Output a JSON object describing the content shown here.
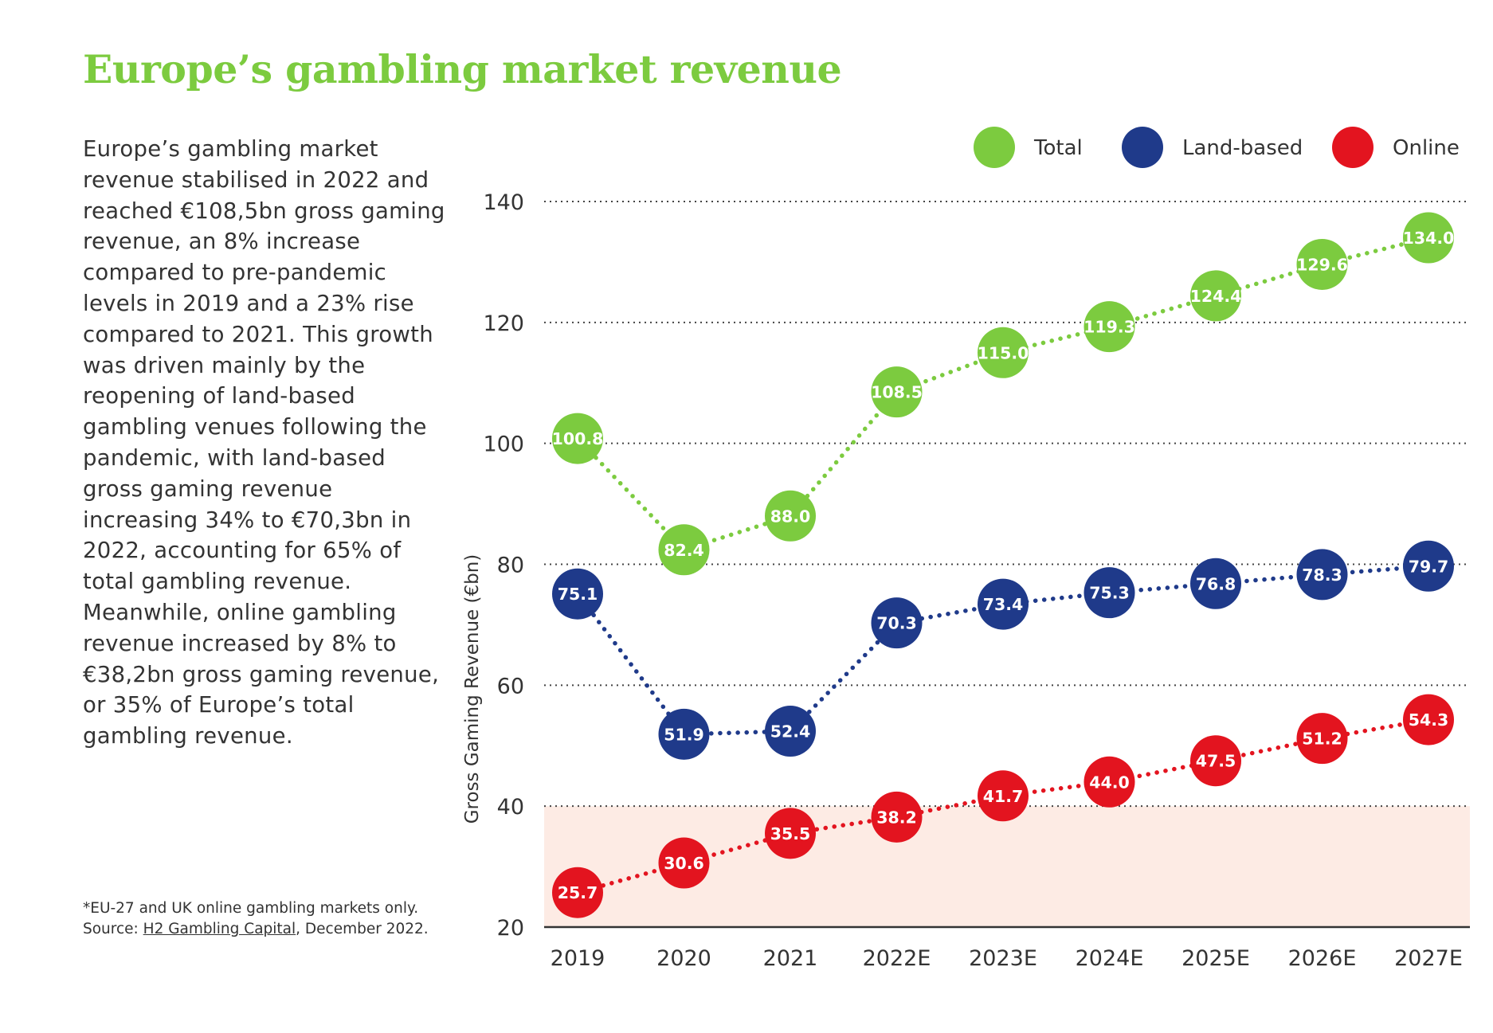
{
  "title": "Europe’s gambling market revenue",
  "description": "Europe’s gambling market revenue stabilised in 2022 and reached €108,5bn gross gaming revenue, an 8% increase compared to pre-pandemic levels in 2019 and a 23% rise compared to 2021. This growth was driven mainly by the reopening of land-based gambling venues following the pandemic, with land-based gross gaming revenue increasing 34% to €70,3bn in 2022, accounting for 65% of total gambling revenue. Meanwhile, online gambling revenue increased by 8% to €38,2bn gross gaming revenue, or 35% of Europe’s total gambling revenue.",
  "footnote": {
    "note": "*EU-27 and UK online gambling markets only.",
    "source_prefix": "Source: ",
    "source_name": "H2 Gambling Capital",
    "source_suffix": ", December 2022."
  },
  "chart_data": {
    "type": "line",
    "title": "Europe’s gambling market revenue",
    "xlabel": "",
    "ylabel": "Gross Gaming Revenue (€bn)",
    "ylim": [
      20,
      140
    ],
    "yticks": [
      20,
      40,
      60,
      80,
      100,
      120,
      140
    ],
    "grid": "horizontal dotted",
    "shaded_band": [
      20,
      40
    ],
    "legend_position": "top-right",
    "categories": [
      "2019",
      "2020",
      "2021",
      "2022E",
      "2023E",
      "2024E",
      "2025E",
      "2026E",
      "2027E"
    ],
    "series": [
      {
        "name": "Total",
        "color": "#7ccb3f",
        "values": [
          100.8,
          82.4,
          88.0,
          108.5,
          115.0,
          119.3,
          124.4,
          129.6,
          134.0
        ]
      },
      {
        "name": "Land-based",
        "color": "#1f3a8a",
        "values": [
          75.1,
          51.9,
          52.4,
          70.3,
          73.4,
          75.3,
          76.8,
          78.3,
          79.7
        ]
      },
      {
        "name": "Online",
        "color": "#e3141f",
        "values": [
          25.7,
          30.6,
          35.5,
          38.2,
          41.7,
          44.0,
          47.5,
          51.2,
          54.3
        ]
      }
    ],
    "band_color": "#fdebe4"
  }
}
